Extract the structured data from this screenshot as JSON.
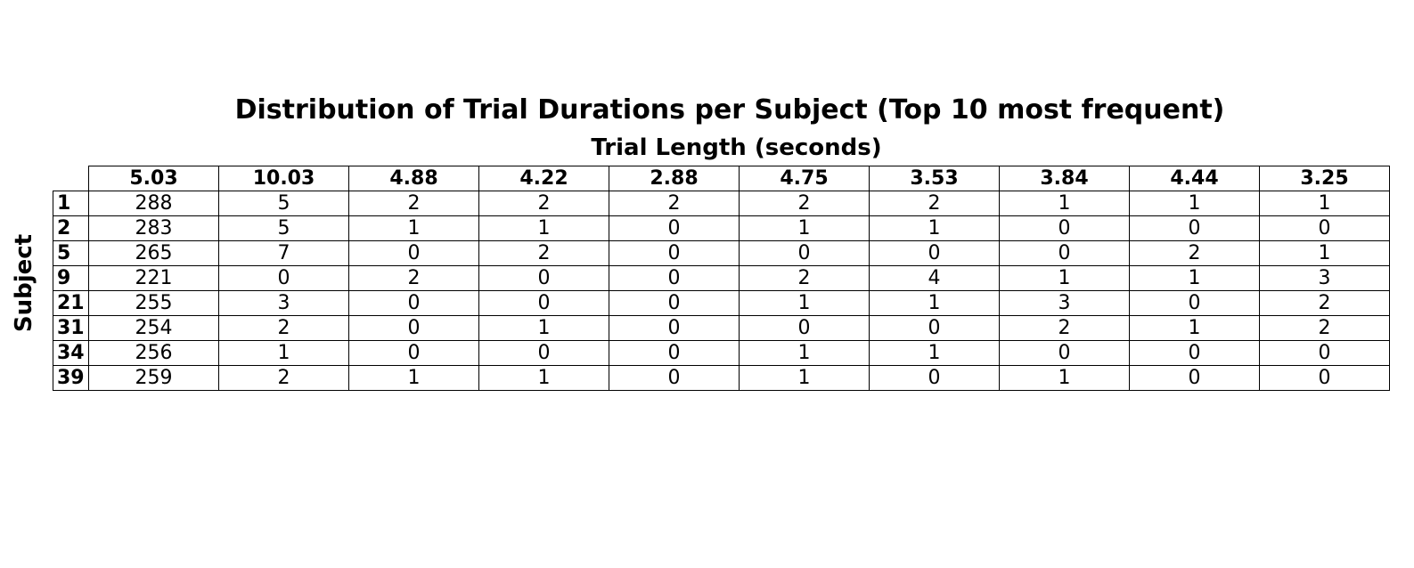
{
  "chart_data": {
    "type": "table",
    "title": "Distribution of Trial Durations per Subject (Top 10 most frequent)",
    "column_label": "Trial Length (seconds)",
    "row_label": "Subject",
    "columns": [
      "5.03",
      "10.03",
      "4.88",
      "4.22",
      "2.88",
      "4.75",
      "3.53",
      "3.84",
      "4.44",
      "3.25"
    ],
    "rows": [
      "1",
      "2",
      "5",
      "9",
      "21",
      "31",
      "34",
      "39"
    ],
    "values": [
      [
        288,
        5,
        2,
        2,
        2,
        2,
        2,
        1,
        1,
        1
      ],
      [
        283,
        5,
        1,
        1,
        0,
        1,
        1,
        0,
        0,
        0
      ],
      [
        265,
        7,
        0,
        2,
        0,
        0,
        0,
        0,
        2,
        1
      ],
      [
        221,
        0,
        2,
        0,
        0,
        2,
        4,
        1,
        1,
        3
      ],
      [
        255,
        3,
        0,
        0,
        0,
        1,
        1,
        3,
        0,
        2
      ],
      [
        254,
        2,
        0,
        1,
        0,
        0,
        0,
        2,
        1,
        2
      ],
      [
        256,
        1,
        0,
        0,
        0,
        1,
        1,
        0,
        0,
        0
      ],
      [
        259,
        2,
        1,
        1,
        0,
        1,
        0,
        1,
        0,
        0
      ]
    ]
  }
}
